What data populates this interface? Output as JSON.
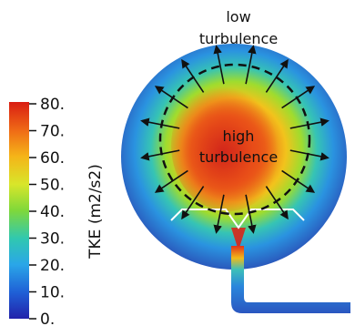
{
  "colorbar": {
    "title": "TKE (m2/s2)",
    "ticks": [
      {
        "label": "80.",
        "value": 80
      },
      {
        "label": "70.",
        "value": 70
      },
      {
        "label": "60.",
        "value": 60
      },
      {
        "label": "50.",
        "value": 50
      },
      {
        "label": "40.",
        "value": 40
      },
      {
        "label": "30.",
        "value": 30
      },
      {
        "label": "20.",
        "value": 20
      },
      {
        "label": "10.",
        "value": 10
      },
      {
        "label": "0.",
        "value": 0
      }
    ],
    "range": [
      0,
      80
    ],
    "colors": [
      "#2222aa",
      "#1f5fd6",
      "#2aa6e8",
      "#30c8b0",
      "#7fd83a",
      "#d8e62a",
      "#f5b418",
      "#ef6a16",
      "#d91d12"
    ]
  },
  "annotations": {
    "low_line1": "low",
    "low_line2": "turbulence",
    "high_line1": "high",
    "high_line2": "turbulence"
  },
  "flow": {
    "outer_color": "#2d62c8",
    "core_color": "#e5321c",
    "arrows_count": 16
  }
}
